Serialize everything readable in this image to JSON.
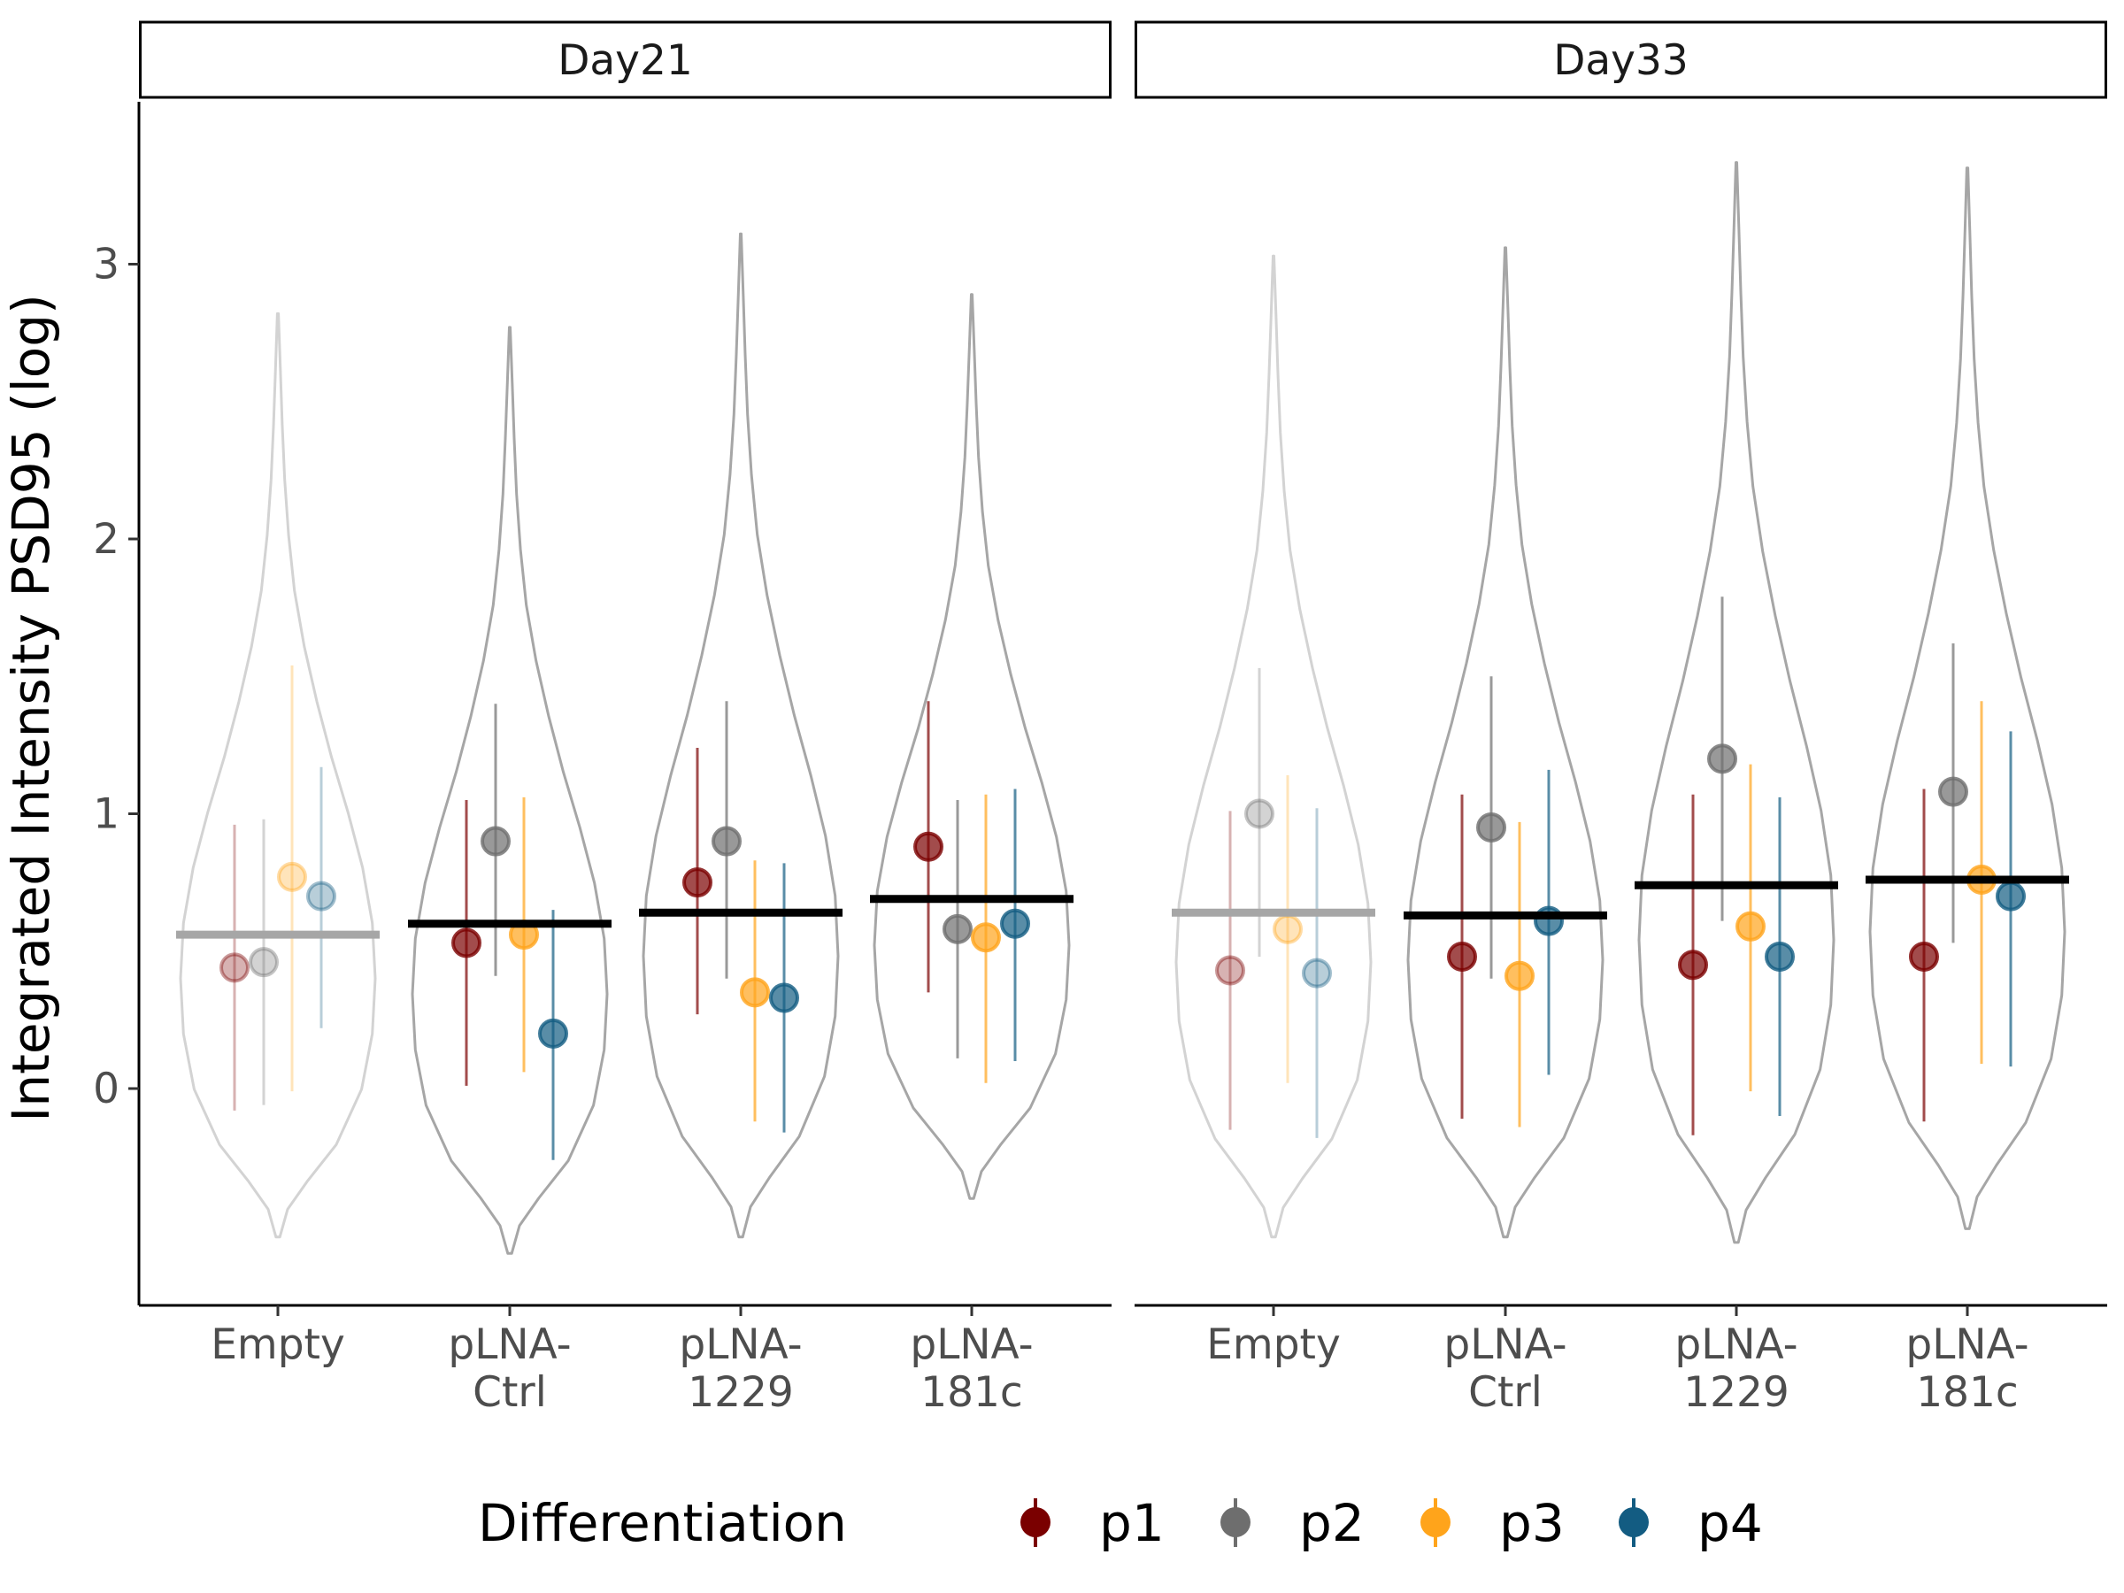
{
  "chart_data": {
    "type": "violin",
    "ylabel": "Integrated Intensity PSD95 (log)",
    "y_ticks": [
      0,
      1,
      2,
      3
    ],
    "ylim": [
      -0.8,
      3.55
    ],
    "categories": [
      "Empty",
      "pLNA-Ctrl",
      "pLNA-1229",
      "pLNA-181c"
    ],
    "category_labels": [
      [
        "Empty"
      ],
      [
        "pLNA-",
        "Ctrl"
      ],
      [
        "pLNA-",
        "1229"
      ],
      [
        "pLNA-",
        "181c"
      ]
    ],
    "legend": {
      "title": "Differentiation",
      "position": "bottom",
      "items": [
        {
          "name": "p1",
          "color": "#7a0000"
        },
        {
          "name": "p2",
          "color": "#6e6e6e"
        },
        {
          "name": "p3",
          "color": "#ffa41b"
        },
        {
          "name": "p4",
          "color": "#135c82"
        }
      ]
    },
    "panels": [
      {
        "title": "Day21",
        "groups": [
          {
            "category": "Empty",
            "highlight": false,
            "mean": 0.56,
            "violin_min": -0.54,
            "violin_max": 2.82,
            "points": [
              {
                "series": "p1",
                "y": 0.44,
                "lo": -0.08,
                "hi": 0.96
              },
              {
                "series": "p2",
                "y": 0.46,
                "lo": -0.06,
                "hi": 0.98
              },
              {
                "series": "p3",
                "y": 0.77,
                "lo": -0.01,
                "hi": 1.54
              },
              {
                "series": "p4",
                "y": 0.7,
                "lo": 0.22,
                "hi": 1.17
              }
            ]
          },
          {
            "category": "pLNA-Ctrl",
            "highlight": true,
            "mean": 0.6,
            "violin_min": -0.6,
            "violin_max": 2.77,
            "points": [
              {
                "series": "p1",
                "y": 0.53,
                "lo": 0.01,
                "hi": 1.05
              },
              {
                "series": "p2",
                "y": 0.9,
                "lo": 0.41,
                "hi": 1.4
              },
              {
                "series": "p3",
                "y": 0.56,
                "lo": 0.06,
                "hi": 1.06
              },
              {
                "series": "p4",
                "y": 0.2,
                "lo": -0.26,
                "hi": 0.65
              }
            ]
          },
          {
            "category": "pLNA-1229",
            "highlight": true,
            "mean": 0.64,
            "violin_min": -0.54,
            "violin_max": 3.11,
            "points": [
              {
                "series": "p1",
                "y": 0.75,
                "lo": 0.27,
                "hi": 1.24
              },
              {
                "series": "p2",
                "y": 0.9,
                "lo": 0.4,
                "hi": 1.41
              },
              {
                "series": "p3",
                "y": 0.35,
                "lo": -0.12,
                "hi": 0.83
              },
              {
                "series": "p4",
                "y": 0.33,
                "lo": -0.16,
                "hi": 0.82
              }
            ]
          },
          {
            "category": "pLNA-181c",
            "highlight": true,
            "mean": 0.69,
            "violin_min": -0.4,
            "violin_max": 2.89,
            "points": [
              {
                "series": "p1",
                "y": 0.88,
                "lo": 0.35,
                "hi": 1.41
              },
              {
                "series": "p2",
                "y": 0.58,
                "lo": 0.11,
                "hi": 1.05
              },
              {
                "series": "p3",
                "y": 0.55,
                "lo": 0.02,
                "hi": 1.07
              },
              {
                "series": "p4",
                "y": 0.6,
                "lo": 0.1,
                "hi": 1.09
              }
            ]
          }
        ]
      },
      {
        "title": "Day33",
        "groups": [
          {
            "category": "Empty",
            "highlight": false,
            "mean": 0.64,
            "violin_min": -0.54,
            "violin_max": 3.03,
            "points": [
              {
                "series": "p1",
                "y": 0.43,
                "lo": -0.15,
                "hi": 1.01
              },
              {
                "series": "p2",
                "y": 1.0,
                "lo": 0.48,
                "hi": 1.53
              },
              {
                "series": "p3",
                "y": 0.58,
                "lo": 0.02,
                "hi": 1.14
              },
              {
                "series": "p4",
                "y": 0.42,
                "lo": -0.18,
                "hi": 1.02
              }
            ]
          },
          {
            "category": "pLNA-Ctrl",
            "highlight": true,
            "mean": 0.63,
            "violin_min": -0.54,
            "violin_max": 3.06,
            "points": [
              {
                "series": "p1",
                "y": 0.48,
                "lo": -0.11,
                "hi": 1.07
              },
              {
                "series": "p2",
                "y": 0.95,
                "lo": 0.4,
                "hi": 1.5
              },
              {
                "series": "p3",
                "y": 0.41,
                "lo": -0.14,
                "hi": 0.97
              },
              {
                "series": "p4",
                "y": 0.61,
                "lo": 0.05,
                "hi": 1.16
              }
            ]
          },
          {
            "category": "pLNA-1229",
            "highlight": true,
            "mean": 0.74,
            "violin_min": -0.56,
            "violin_max": 3.37,
            "points": [
              {
                "series": "p1",
                "y": 0.45,
                "lo": -0.17,
                "hi": 1.07
              },
              {
                "series": "p2",
                "y": 1.2,
                "lo": 0.61,
                "hi": 1.79
              },
              {
                "series": "p3",
                "y": 0.59,
                "lo": -0.01,
                "hi": 1.18
              },
              {
                "series": "p4",
                "y": 0.48,
                "lo": -0.1,
                "hi": 1.06
              }
            ]
          },
          {
            "category": "pLNA-181c",
            "highlight": true,
            "mean": 0.76,
            "violin_min": -0.51,
            "violin_max": 3.35,
            "points": [
              {
                "series": "p1",
                "y": 0.48,
                "lo": -0.12,
                "hi": 1.09
              },
              {
                "series": "p2",
                "y": 1.08,
                "lo": 0.53,
                "hi": 1.62
              },
              {
                "series": "p3",
                "y": 0.76,
                "lo": 0.09,
                "hi": 1.41
              },
              {
                "series": "p4",
                "y": 0.7,
                "lo": 0.08,
                "hi": 1.3
              }
            ]
          }
        ]
      }
    ]
  }
}
